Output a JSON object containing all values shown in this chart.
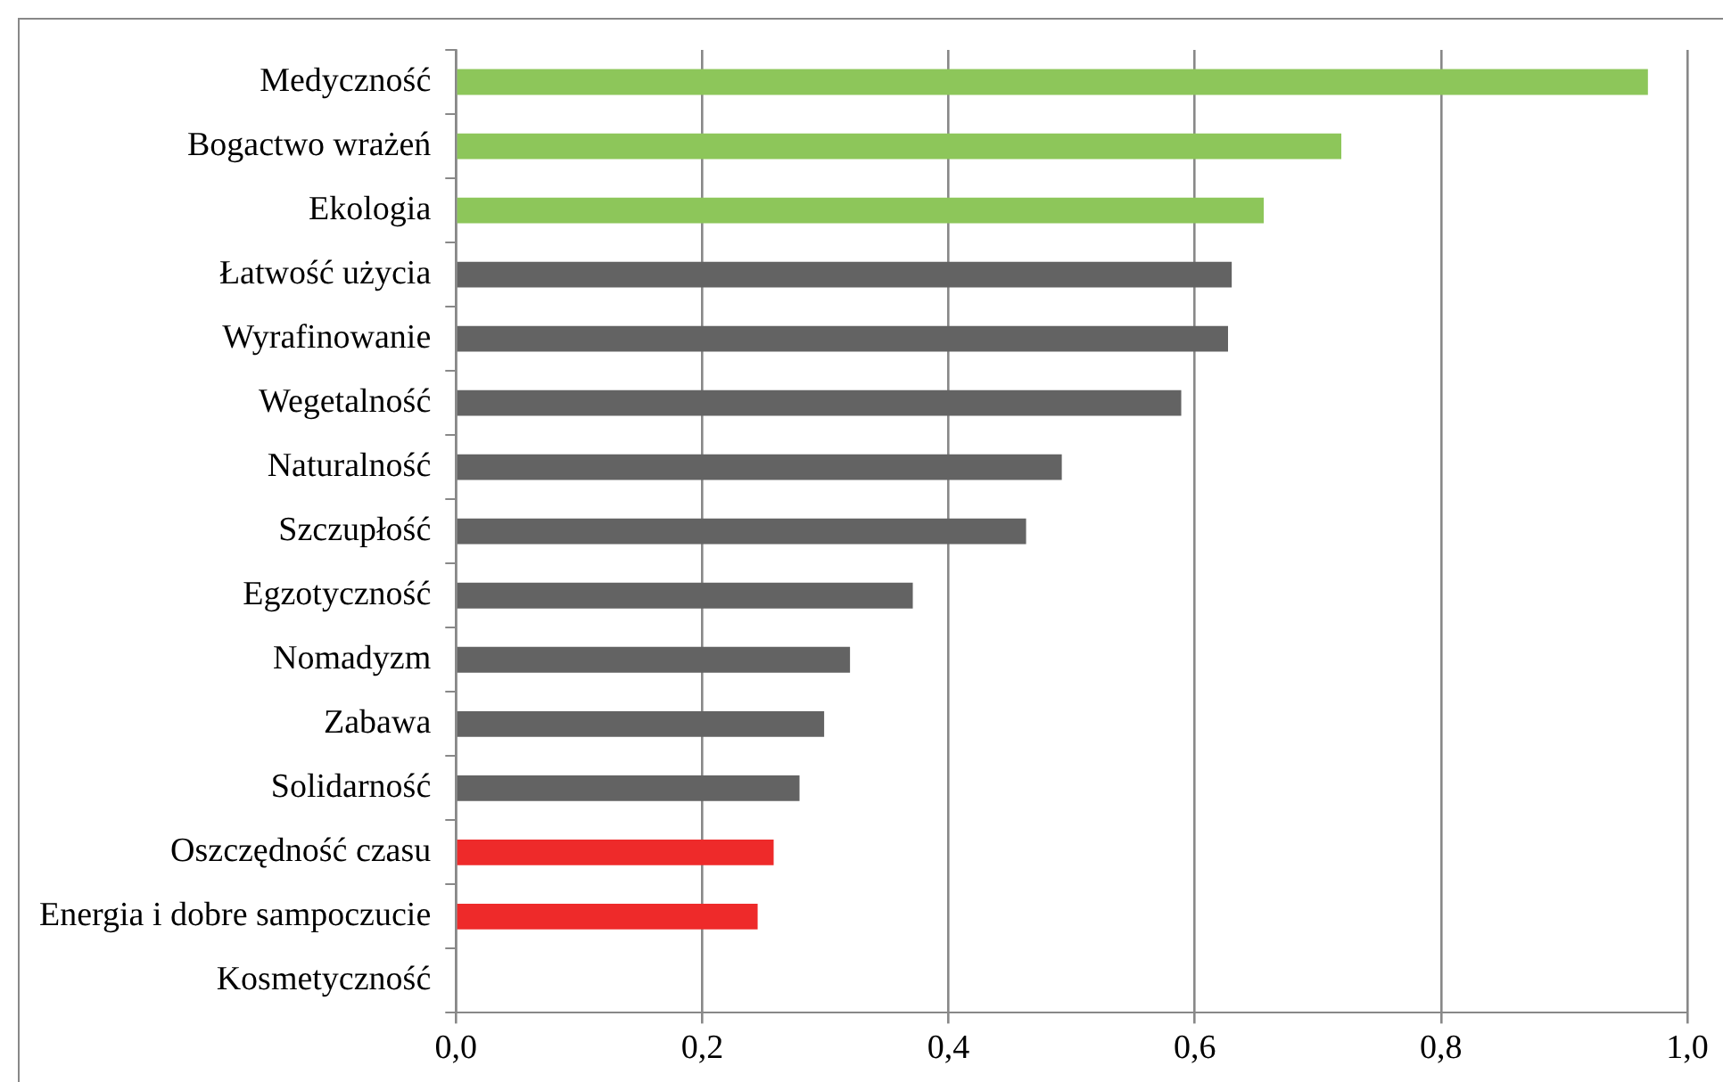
{
  "chart_data": {
    "type": "bar",
    "orientation": "horizontal",
    "categories": [
      "Medyczność",
      "Bogactwo wrażeń",
      "Ekologia",
      "Łatwość użycia",
      "Wyrafinowanie",
      "Wegetalność",
      "Naturalność",
      "Szczupłość",
      "Egzotyczność",
      "Nomadyzm",
      "Zabawa",
      "Solidarność",
      "Oszczędność czasu",
      "Energia i dobre sampoczucie",
      "Kosmetyczność"
    ],
    "values": [
      0.968,
      0.719,
      0.656,
      0.63,
      0.627,
      0.589,
      0.492,
      0.463,
      0.371,
      0.32,
      0.299,
      0.279,
      0.258,
      0.245,
      0
    ],
    "colors": [
      "#8dc65a",
      "#8dc65a",
      "#8dc65a",
      "#636363",
      "#636363",
      "#636363",
      "#636363",
      "#636363",
      "#636363",
      "#636363",
      "#636363",
      "#636363",
      "#ee2a2a",
      "#ee2a2a",
      "#636363"
    ],
    "xlim": [
      0,
      1
    ],
    "xticks": [
      {
        "value": 0,
        "label": "0,0"
      },
      {
        "value": 0.2,
        "label": "0,2"
      },
      {
        "value": 0.4,
        "label": "0,4"
      },
      {
        "value": 0.6,
        "label": "0,6"
      },
      {
        "value": 0.8,
        "label": "0,8"
      },
      {
        "value": 1,
        "label": "1,0"
      }
    ],
    "grid": "x",
    "legend": false
  }
}
